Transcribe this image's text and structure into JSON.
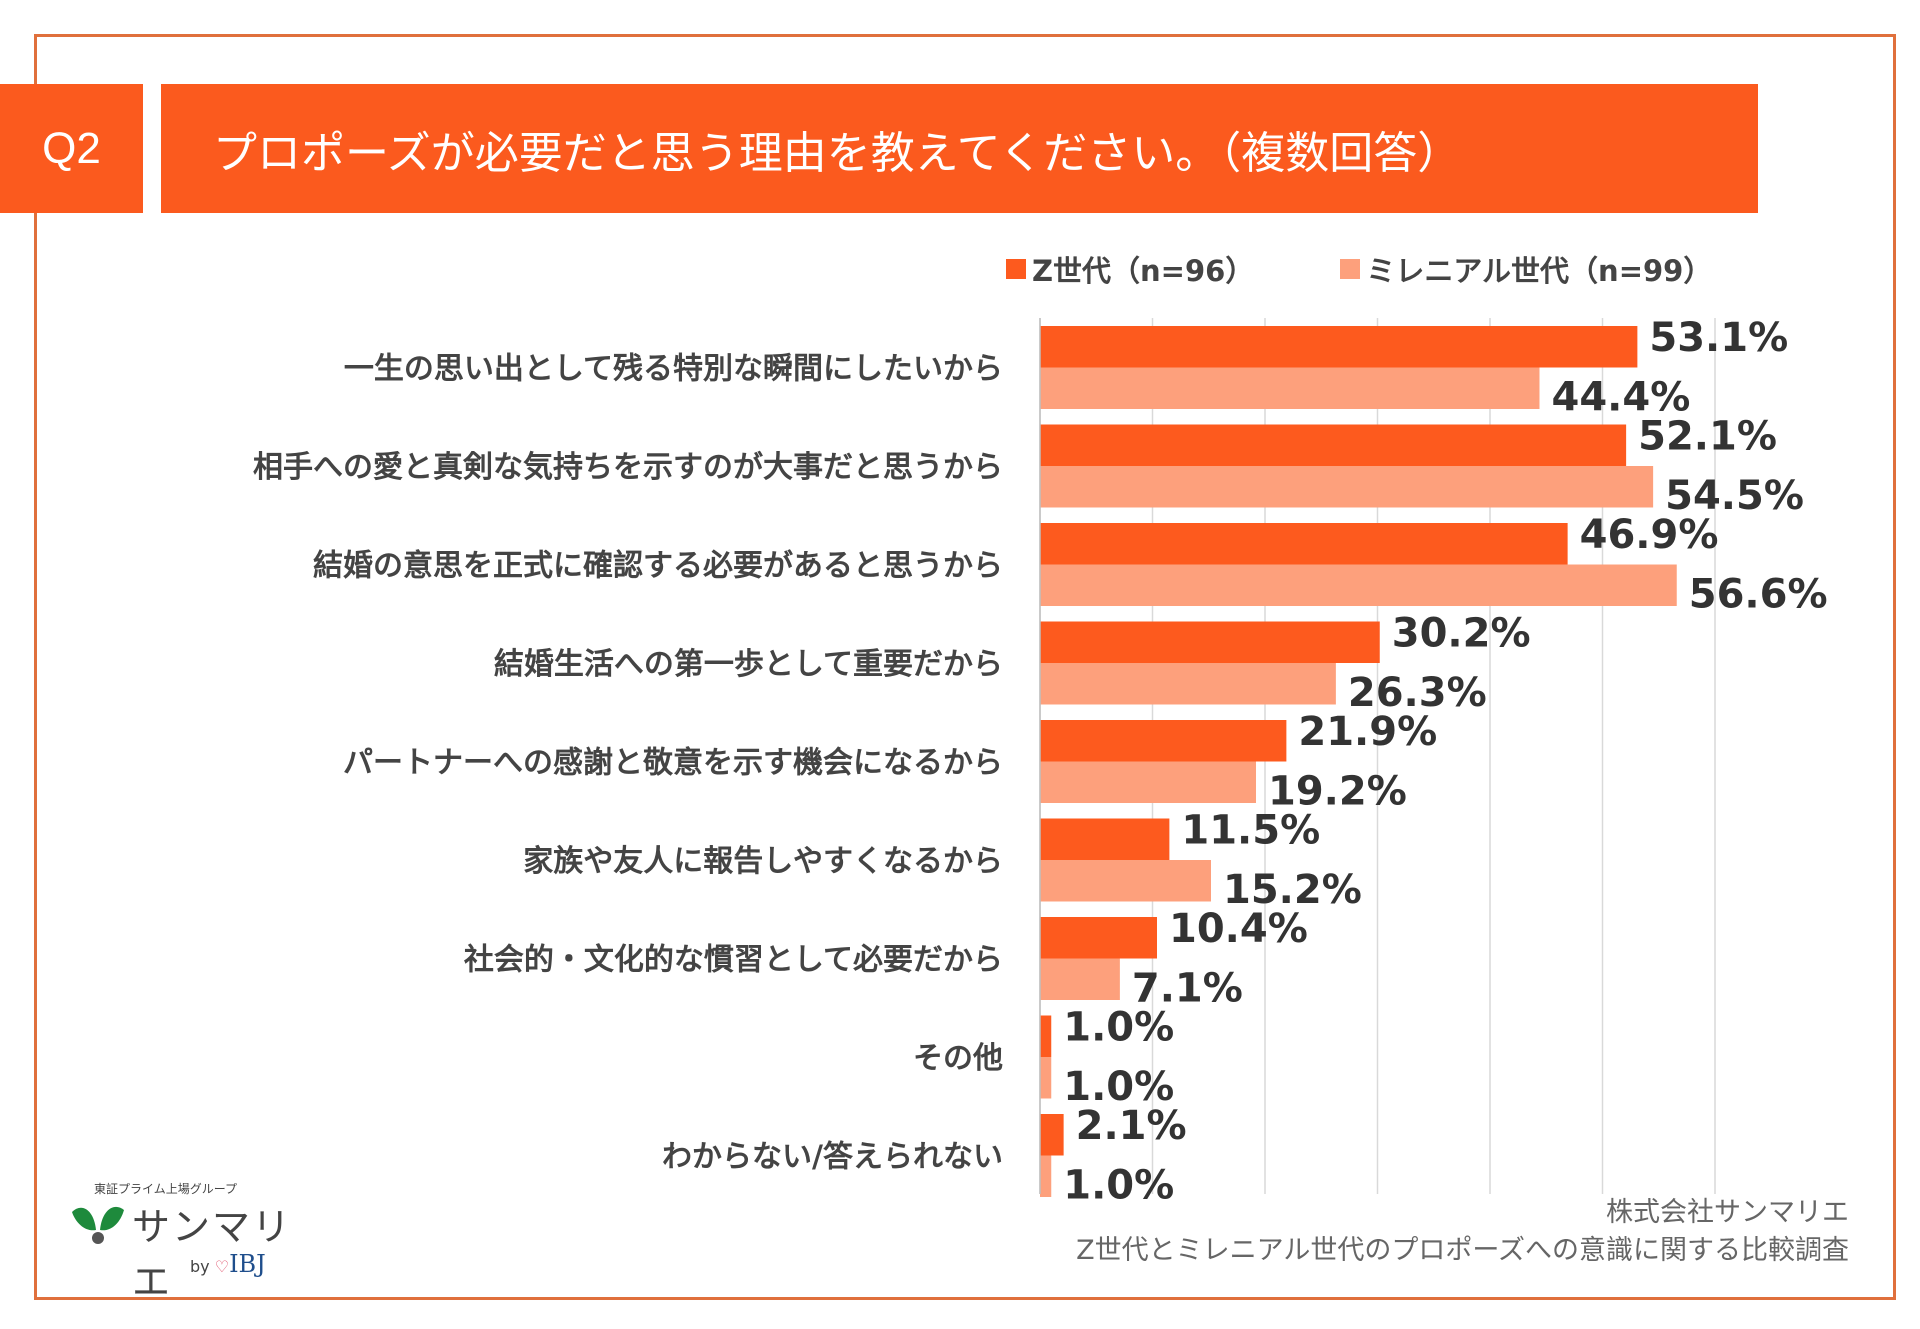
{
  "header": {
    "q_label": "Q2",
    "title": "プロポーズが必要だと思う理由を教えてください。（複数回答）"
  },
  "chart_data": {
    "type": "bar",
    "orientation": "horizontal",
    "categories": [
      "一生の思い出として残る特別な瞬間にしたいから",
      "相手への愛と真剣な気持ちを示すのが大事だと思うから",
      "結婚の意思を正式に確認する必要があると思うから",
      "結婚生活への第一歩として重要だから",
      "パートナーへの感謝と敬意を示す機会になるから",
      "家族や友人に報告しやすくなるから",
      "社会的・文化的な慣習として必要だから",
      "その他",
      "わからない/答えられない"
    ],
    "series": [
      {
        "name": "Z世代（n=96）",
        "color": "#fd5a1e",
        "values": [
          53.1,
          52.1,
          46.9,
          30.2,
          21.9,
          11.5,
          10.4,
          1.0,
          2.1
        ]
      },
      {
        "name": "ミレニアル世代（n=99）",
        "color": "#fda07c",
        "values": [
          44.4,
          54.5,
          56.6,
          26.3,
          19.2,
          15.2,
          7.1,
          1.0,
          1.0
        ]
      }
    ],
    "value_suffix": "%",
    "xlim": [
      0,
      60
    ],
    "grid": true,
    "legend": "top"
  },
  "footer": {
    "company": "株式会社サンマリエ",
    "survey": "Z世代とミレニアル世代のプロポーズへの意識に関する比較調査"
  },
  "logo": {
    "group": "東証プライム上場グループ",
    "name": "サンマリエ",
    "by": "by",
    "ibj": "IBJ"
  }
}
